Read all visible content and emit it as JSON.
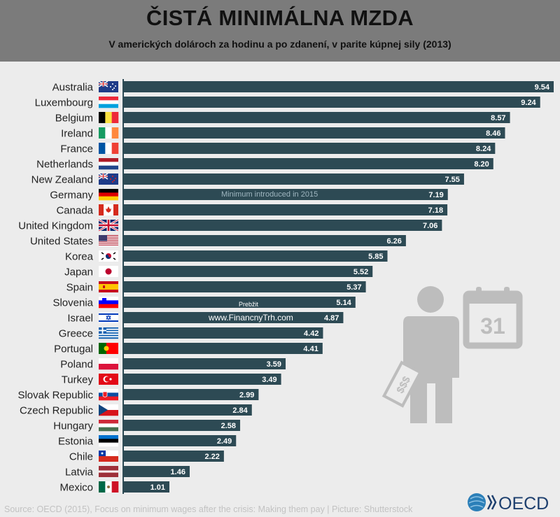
{
  "header": {
    "title": "ČISTÁ MINIMÁLNA MZDA",
    "subtitle": "V amerických dolároch za hodinu a po zdanení, v parite kúpnej sily (2013)"
  },
  "chart_data": {
    "type": "bar",
    "orientation": "horizontal",
    "categories": [
      "Australia",
      "Luxembourg",
      "Belgium",
      "Ireland",
      "France",
      "Netherlands",
      "New Zealand",
      "Germany",
      "Canada",
      "United Kingdom",
      "United States",
      "Korea",
      "Japan",
      "Spain",
      "Slovenia",
      "Israel",
      "Greece",
      "Portugal",
      "Poland",
      "Turkey",
      "Slovak Republic",
      "Czech Republic",
      "Hungary",
      "Estonia",
      "Chile",
      "Latvia",
      "Mexico"
    ],
    "values": [
      9.54,
      9.24,
      8.57,
      8.46,
      8.24,
      8.2,
      7.55,
      7.19,
      7.18,
      7.06,
      6.26,
      5.85,
      5.52,
      5.37,
      5.14,
      4.87,
      4.42,
      4.41,
      3.59,
      3.49,
      2.99,
      2.84,
      2.58,
      2.49,
      2.22,
      1.46,
      1.01
    ],
    "value_labels": [
      "9.54",
      "9.24",
      "8.57",
      "8.46",
      "8.24",
      "8.20",
      "7.55",
      "7.19",
      "7.18",
      "7.06",
      "6.26",
      "5.85",
      "5.52",
      "5.37",
      "5.14",
      "4.87",
      "4.42",
      "4.41",
      "3.59",
      "3.49",
      "2.99",
      "2.84",
      "2.58",
      "2.49",
      "2.22",
      "1.46",
      "1.01"
    ],
    "bar_color": "#2d4a54",
    "annotation": "Minimum introduced in 2015",
    "annotation_category": "Germany",
    "legend": "none",
    "grid": false
  },
  "watermark": {
    "line1": "Prebžit",
    "line2": "www.FinancnyTrh.com"
  },
  "calendar_icon": {
    "day": "31"
  },
  "money_sign": "$$$",
  "source": "Source: OECD (2015), Focus on minimum wages after the crisis: Making them pay | Picture: Shutterstock",
  "logo": {
    "text": "OECD"
  }
}
